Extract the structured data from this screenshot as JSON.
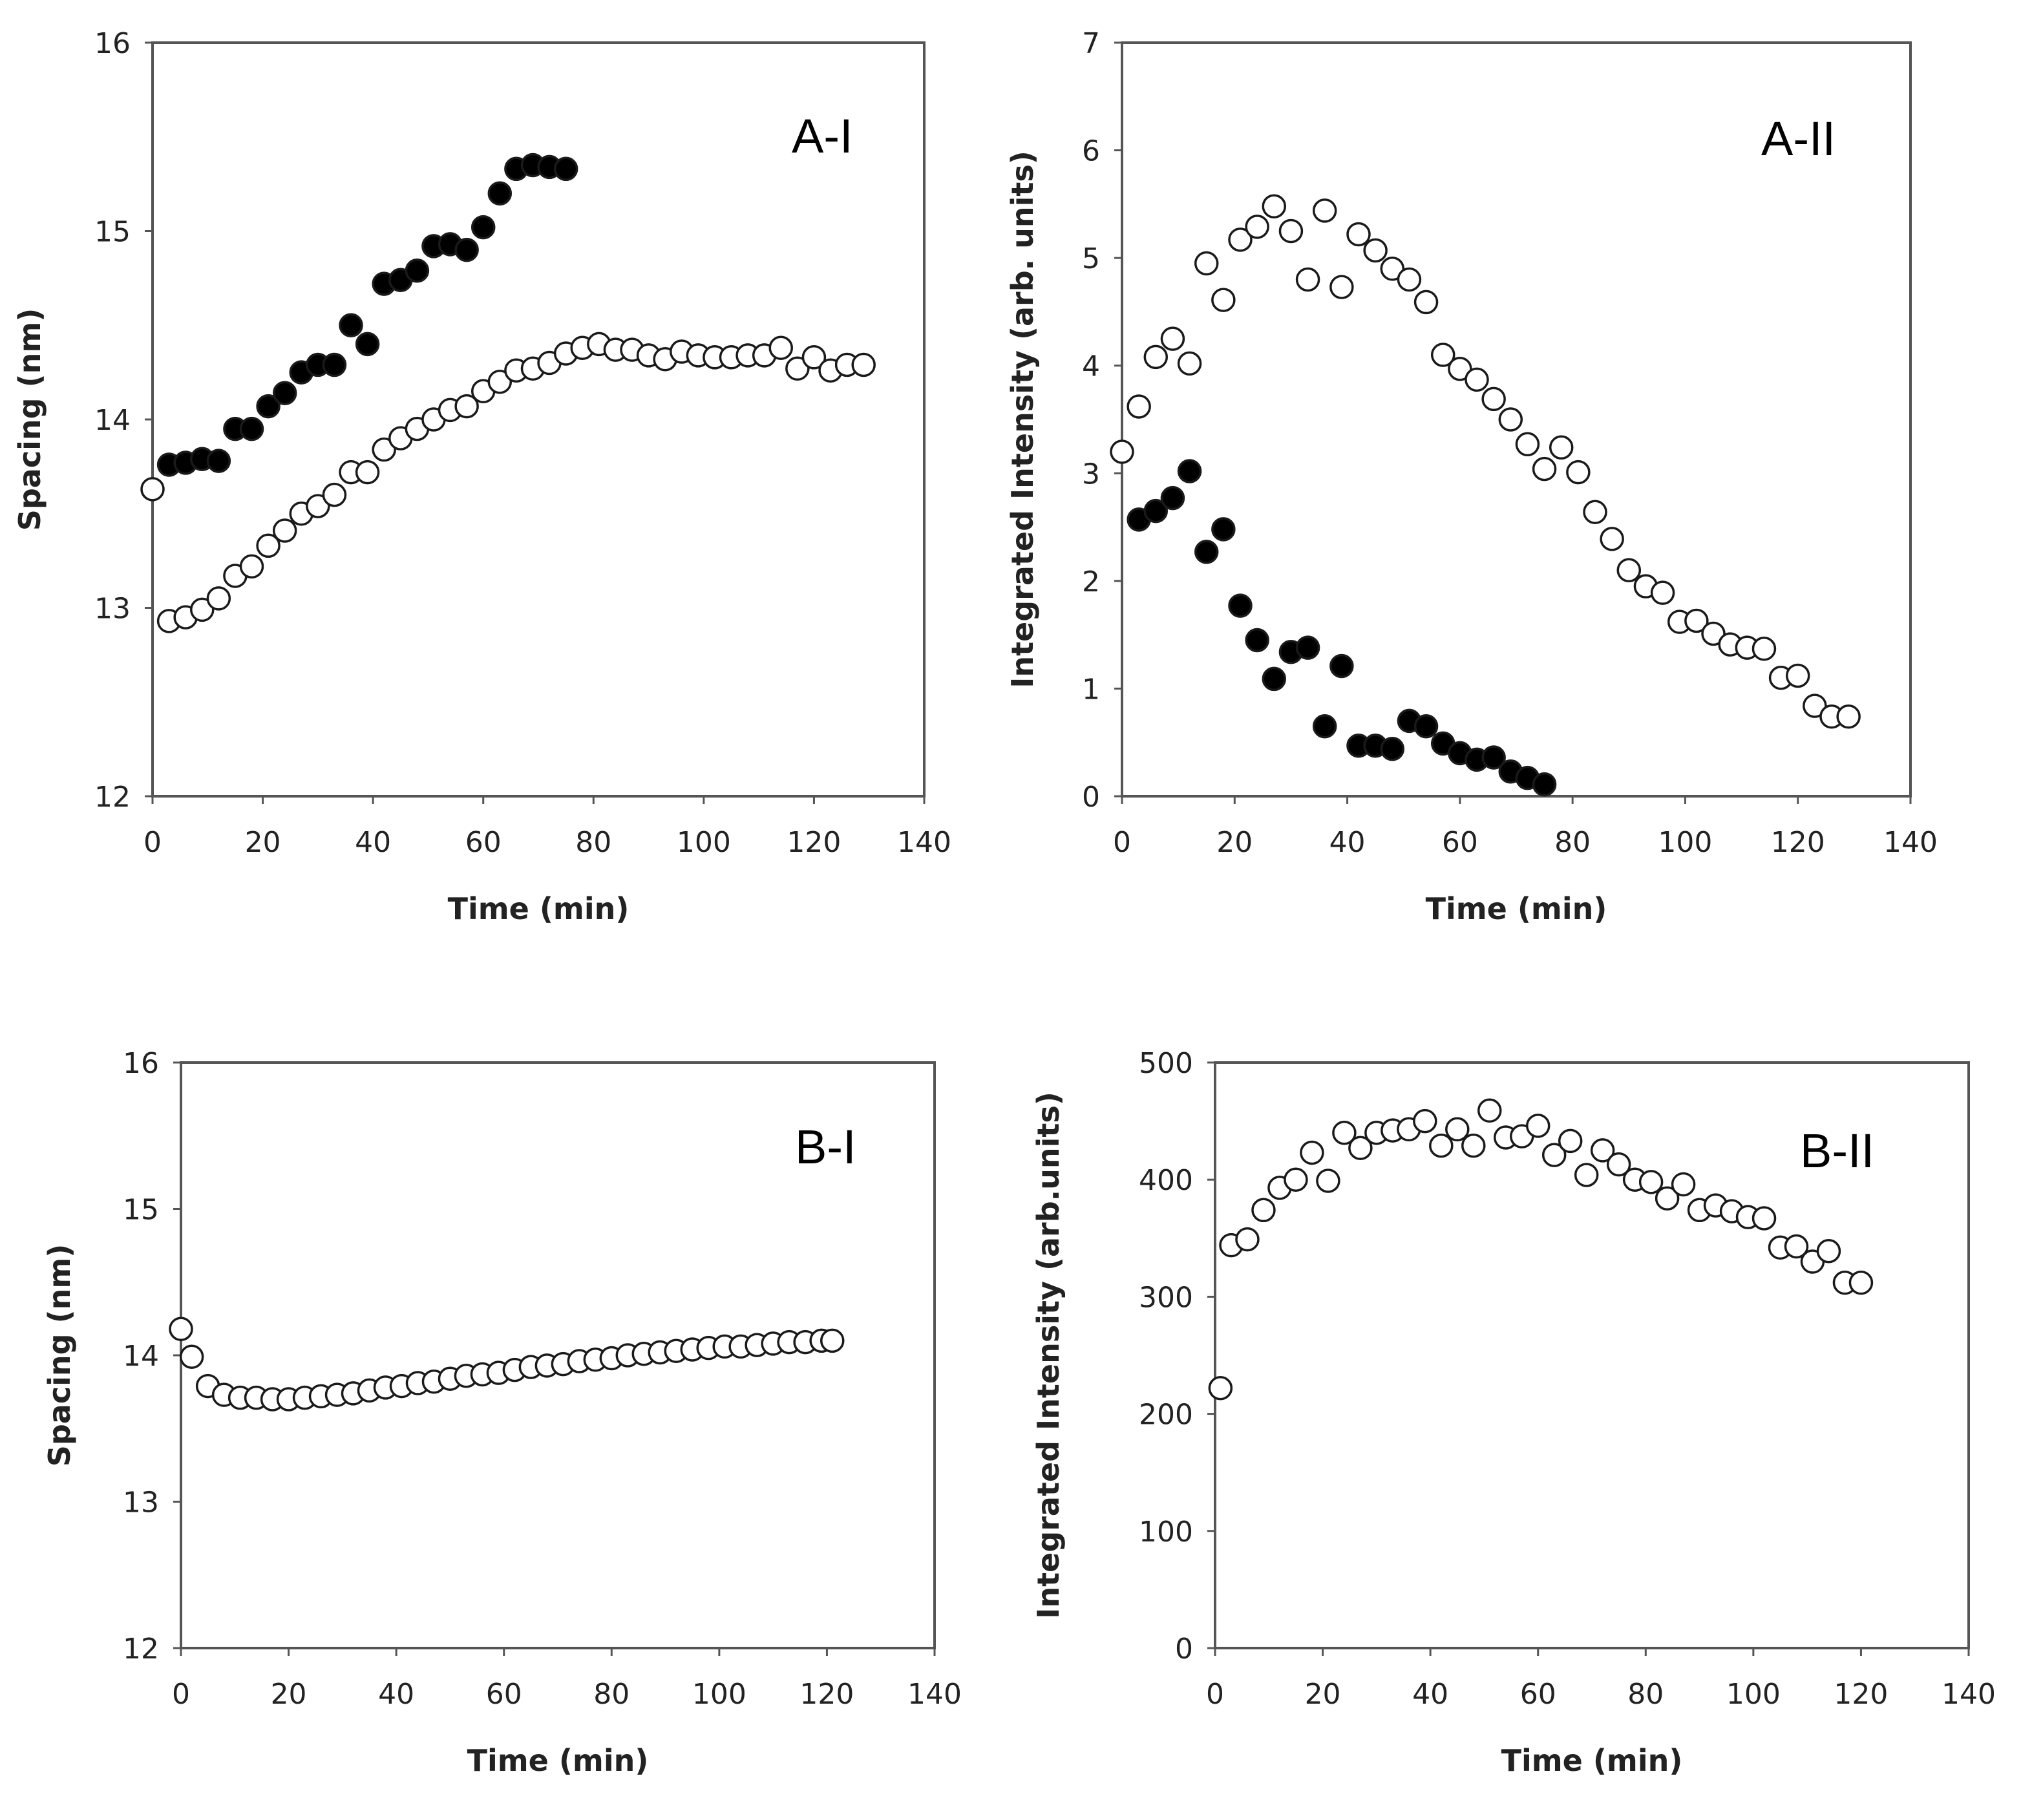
{
  "colors": {
    "marker_stroke": "#1a1a1a",
    "filled": "#000000",
    "open": "#ffffff",
    "axis": "#555555"
  },
  "chart_data": [
    {
      "type": "scatter",
      "panel_label": "A-I",
      "xlabel": "Time (min)",
      "ylabel": "Spacing (nm)",
      "xlim": [
        0,
        140
      ],
      "ylim": [
        12,
        16
      ],
      "xticks": [
        "0",
        "20",
        "40",
        "60",
        "80",
        "100",
        "120",
        "140"
      ],
      "yticks": [
        "12",
        "13",
        "14",
        "15",
        "16"
      ],
      "series": [
        {
          "name": "filled",
          "filled": true,
          "x": [
            3,
            6,
            9,
            12,
            15,
            18,
            21,
            24,
            27,
            30,
            33,
            36,
            39,
            42,
            45,
            48,
            51,
            54,
            57,
            60,
            63,
            66,
            69,
            72,
            75
          ],
          "y": [
            13.76,
            13.77,
            13.79,
            13.78,
            13.95,
            13.95,
            14.07,
            14.14,
            14.25,
            14.29,
            14.29,
            14.5,
            14.4,
            14.72,
            14.74,
            14.79,
            14.92,
            14.93,
            14.9,
            15.02,
            15.2,
            15.33,
            15.35,
            15.34,
            15.33
          ]
        },
        {
          "name": "open",
          "filled": false,
          "x": [
            0,
            3,
            6,
            9,
            12,
            15,
            18,
            21,
            24,
            27,
            30,
            33,
            36,
            39,
            42,
            45,
            48,
            51,
            54,
            57,
            60,
            63,
            66,
            69,
            72,
            75,
            78,
            81,
            84,
            87,
            90,
            93,
            96,
            99,
            102,
            105,
            108,
            111,
            114,
            117,
            120,
            123,
            126,
            129
          ],
          "y": [
            13.63,
            12.93,
            12.95,
            12.99,
            13.05,
            13.17,
            13.22,
            13.33,
            13.41,
            13.5,
            13.54,
            13.6,
            13.72,
            13.72,
            13.84,
            13.9,
            13.95,
            14.0,
            14.05,
            14.07,
            14.15,
            14.2,
            14.26,
            14.27,
            14.3,
            14.35,
            14.38,
            14.4,
            14.37,
            14.37,
            14.34,
            14.32,
            14.36,
            14.34,
            14.33,
            14.33,
            14.34,
            14.34,
            14.38,
            14.27,
            14.33,
            14.26,
            14.29,
            14.29
          ]
        }
      ]
    },
    {
      "type": "scatter",
      "panel_label": "A-II",
      "xlabel": "Time (min)",
      "ylabel": "Integrated Intensity (arb. units)",
      "xlim": [
        0,
        140
      ],
      "ylim": [
        0,
        7
      ],
      "xticks": [
        "0",
        "20",
        "40",
        "60",
        "80",
        "100",
        "120",
        "140"
      ],
      "yticks": [
        "0",
        "1",
        "2",
        "3",
        "4",
        "5",
        "6",
        "7"
      ],
      "series": [
        {
          "name": "filled",
          "filled": true,
          "x": [
            3,
            6,
            9,
            12,
            15,
            18,
            21,
            24,
            27,
            30,
            33,
            36,
            39,
            42,
            45,
            48,
            51,
            54,
            57,
            60,
            63,
            66,
            69,
            72,
            75
          ],
          "y": [
            2.57,
            2.65,
            2.77,
            3.02,
            2.27,
            2.48,
            1.77,
            1.45,
            1.09,
            1.34,
            1.38,
            0.65,
            1.21,
            0.47,
            0.47,
            0.44,
            0.7,
            0.65,
            0.49,
            0.4,
            0.34,
            0.36,
            0.23,
            0.17,
            0.11
          ]
        },
        {
          "name": "open",
          "filled": false,
          "x": [
            0,
            3,
            6,
            9,
            12,
            15,
            18,
            21,
            24,
            27,
            30,
            33,
            36,
            39,
            42,
            45,
            48,
            51,
            54,
            57,
            60,
            63,
            66,
            69,
            72,
            75,
            78,
            81,
            84,
            87,
            90,
            93,
            96,
            99,
            102,
            105,
            108,
            111,
            114,
            117,
            120,
            123,
            126,
            129
          ],
          "y": [
            3.2,
            3.62,
            4.08,
            4.25,
            4.02,
            4.95,
            4.61,
            5.17,
            5.29,
            5.48,
            5.25,
            4.8,
            5.44,
            4.73,
            5.22,
            5.07,
            4.9,
            4.8,
            4.59,
            4.1,
            3.97,
            3.87,
            3.69,
            3.5,
            3.27,
            3.04,
            3.24,
            3.01,
            2.64,
            2.39,
            2.1,
            1.95,
            1.89,
            1.62,
            1.63,
            1.51,
            1.41,
            1.38,
            1.37,
            1.1,
            1.12,
            0.84,
            0.74,
            0.74
          ]
        }
      ]
    },
    {
      "type": "scatter",
      "panel_label": "B-I",
      "xlabel": "Time (min)",
      "ylabel": "Spacing (nm)",
      "xlim": [
        0,
        140
      ],
      "ylim": [
        12,
        16
      ],
      "xticks": [
        "0",
        "20",
        "40",
        "60",
        "80",
        "100",
        "120",
        "140"
      ],
      "yticks": [
        "12",
        "13",
        "14",
        "15",
        "16"
      ],
      "series": [
        {
          "name": "open",
          "filled": false,
          "x": [
            0,
            2,
            5,
            8,
            11,
            14,
            17,
            20,
            23,
            26,
            29,
            32,
            35,
            38,
            41,
            44,
            47,
            50,
            53,
            56,
            59,
            62,
            65,
            68,
            71,
            74,
            77,
            80,
            83,
            86,
            89,
            92,
            95,
            98,
            101,
            104,
            107,
            110,
            113,
            116,
            119,
            121
          ],
          "y": [
            14.18,
            13.99,
            13.79,
            13.73,
            13.71,
            13.71,
            13.7,
            13.7,
            13.71,
            13.72,
            13.73,
            13.74,
            13.76,
            13.78,
            13.79,
            13.81,
            13.82,
            13.84,
            13.86,
            13.87,
            13.88,
            13.9,
            13.92,
            13.93,
            13.94,
            13.96,
            13.97,
            13.98,
            14.0,
            14.01,
            14.02,
            14.03,
            14.04,
            14.05,
            14.06,
            14.06,
            14.07,
            14.08,
            14.09,
            14.09,
            14.1,
            14.1
          ]
        }
      ]
    },
    {
      "type": "scatter",
      "panel_label": "B-II",
      "xlabel": "Time (min)",
      "ylabel": "Integrated Intensity (arb.units)",
      "xlim": [
        0,
        140
      ],
      "ylim": [
        0,
        500
      ],
      "xticks": [
        "0",
        "20",
        "40",
        "60",
        "80",
        "100",
        "120",
        "140"
      ],
      "yticks": [
        "0",
        "100",
        "200",
        "300",
        "400",
        "500"
      ],
      "series": [
        {
          "name": "open",
          "filled": false,
          "x": [
            1,
            3,
            6,
            9,
            12,
            15,
            18,
            21,
            24,
            27,
            30,
            33,
            36,
            39,
            42,
            45,
            48,
            51,
            54,
            57,
            60,
            63,
            66,
            69,
            72,
            75,
            78,
            81,
            84,
            87,
            90,
            93,
            96,
            99,
            102,
            105,
            108,
            111,
            114,
            117,
            120
          ],
          "y": [
            222,
            344,
            349,
            374,
            393,
            400,
            423,
            399,
            440,
            427,
            440,
            442,
            443,
            450,
            429,
            443,
            429,
            459,
            436,
            437,
            446,
            421,
            433,
            404,
            425,
            413,
            400,
            398,
            384,
            396,
            374,
            378,
            373,
            368,
            367,
            342,
            343,
            330,
            339,
            312,
            312
          ]
        }
      ]
    }
  ]
}
